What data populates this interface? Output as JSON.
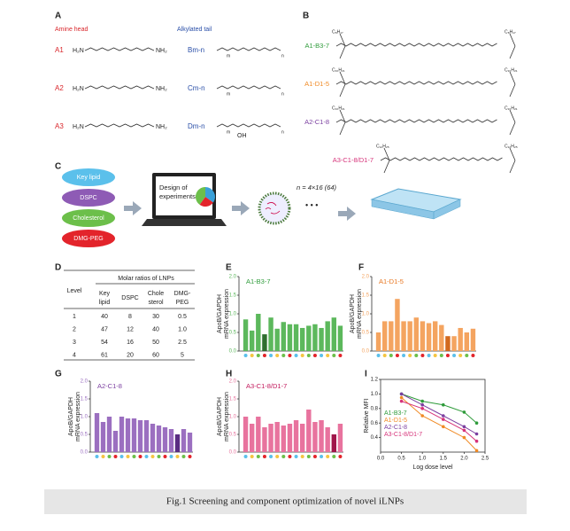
{
  "panels": {
    "A": "A",
    "B": "B",
    "C": "C",
    "D": "D",
    "E": "E",
    "F": "F",
    "G": "G",
    "H": "H",
    "I": "I"
  },
  "panel_a": {
    "head_title": "Amine head",
    "tail_title": "Alkylated tail",
    "heads": [
      {
        "name": "A1",
        "left": "H₂N",
        "right": "NH₂"
      },
      {
        "name": "A2",
        "left": "H₂N",
        "right": "NH₂"
      },
      {
        "name": "A3",
        "left": "H₂N",
        "right": "NH₂"
      }
    ],
    "tails": [
      {
        "name": "Bm-n",
        "m": "m",
        "n": "n"
      },
      {
        "name": "Cm-n",
        "m": "m",
        "n": "n"
      },
      {
        "name": "Dm-n",
        "m": "m",
        "n": "n",
        "oh": "OH"
      }
    ]
  },
  "panel_b": {
    "lipids": [
      {
        "name": "A1-B3-7",
        "group": "C₈H₁₇"
      },
      {
        "name": "A1-D1-5",
        "group": "C₁₀H₂₁"
      },
      {
        "name": "A2-C1-8",
        "group": "C₁₀H₂₁"
      },
      {
        "name": "A3-C1-8/D1-7",
        "group": "C₁₂H₂₅"
      }
    ]
  },
  "panel_c": {
    "lipids": [
      "Key lipid",
      "DSPC",
      "Cholesterol",
      "DMG-PEG"
    ],
    "design": [
      "Design of",
      "experiments"
    ],
    "n_label": "n = 4×16 (64)",
    "dots": "• • •"
  },
  "table": {
    "header": "Molar ratios of LNPs",
    "columns": [
      "Level",
      [
        "Key",
        "lipid"
      ],
      "DSPC",
      [
        "Chole",
        "sterol"
      ],
      [
        "DMG-",
        "PEG"
      ]
    ],
    "rows": [
      [
        1,
        40,
        8,
        30,
        0.5
      ],
      [
        2,
        47,
        12,
        40,
        {
          "value": 1,
          "label": "1.0"
        }
      ],
      [
        3,
        54,
        16,
        50,
        2.5
      ],
      [
        4,
        61,
        20,
        60,
        5
      ]
    ]
  },
  "charts": {
    "E": {
      "type": "bar",
      "title": "A1-B3-7",
      "ylabel": [
        "ApoB/GAPDH",
        "mRNA expression"
      ],
      "ylim": [
        0,
        2
      ],
      "yticks": [
        {
          "value": 0,
          "label": "0.0"
        },
        {
          "value": 0.5,
          "label": "0.5"
        },
        {
          "value": 1,
          "label": "1.0"
        },
        {
          "value": 1.5,
          "label": "1.5"
        },
        {
          "value": 2,
          "label": "2.0"
        }
      ],
      "color": "#5cb85c",
      "title_color": "#2e9b3a",
      "values": [
        0.85,
        0.55,
        1.0,
        0.45,
        0.9,
        0.6,
        0.78,
        0.72,
        0.72,
        0.62,
        0.68,
        0.72,
        0.62,
        0.8,
        0.9,
        0.68
      ],
      "colors": [
        "#5cb85c",
        "#5cb85c",
        "#5cb85c",
        "#2f6e2f",
        "#5cb85c",
        "#5cb85c",
        "#5cb85c",
        "#5cb85c",
        "#5cb85c",
        "#5cb85c",
        "#5cb85c",
        "#5cb85c",
        "#5cb85c",
        "#5cb85c",
        "#5cb85c",
        "#5cb85c"
      ]
    },
    "F": {
      "type": "bar",
      "title": "A1-D1-5",
      "ylabel": [
        "ApoB/GAPDH",
        "mRNA expression"
      ],
      "ylim": [
        0,
        2
      ],
      "yticks": [
        {
          "value": 0,
          "label": "0.0"
        },
        {
          "value": 0.5,
          "label": "0.5"
        },
        {
          "value": 1,
          "label": "1.0"
        },
        {
          "value": 1.5,
          "label": "1.5"
        },
        {
          "value": 2,
          "label": "2.0"
        }
      ],
      "color": "#f4a460",
      "title_color": "#e87722",
      "values": [
        0.5,
        0.8,
        0.8,
        1.4,
        0.8,
        0.8,
        0.9,
        0.8,
        0.75,
        0.8,
        0.7,
        0.4,
        0.4,
        0.62,
        0.5,
        0.6
      ],
      "colors": [
        "#f4a460",
        "#f4a460",
        "#f4a460",
        "#f4a460",
        "#f4a460",
        "#f4a460",
        "#f4a460",
        "#f4a460",
        "#f4a460",
        "#f4a460",
        "#f4a460",
        "#d2691e",
        "#f4a460",
        "#f4a460",
        "#f4a460",
        "#f4a460"
      ]
    },
    "G": {
      "type": "bar",
      "title": "A2-C1-8",
      "ylabel": [
        "ApoB/GAPDH",
        "mRNA expression"
      ],
      "ylim": [
        0,
        2
      ],
      "yticks": [
        {
          "value": 0,
          "label": "0.0"
        },
        {
          "value": 0.5,
          "label": "0.5"
        },
        {
          "value": 1,
          "label": "1.0"
        },
        {
          "value": 1.5,
          "label": "1.5"
        },
        {
          "value": 2,
          "label": "2.0"
        }
      ],
      "color": "#9b6fc0",
      "title_color": "#7b3fa0",
      "values": [
        1.1,
        0.85,
        1.0,
        0.6,
        1.0,
        0.95,
        0.95,
        0.9,
        0.9,
        0.8,
        0.75,
        0.7,
        0.65,
        0.5,
        0.65,
        0.55
      ],
      "colors": [
        "#9b6fc0",
        "#9b6fc0",
        "#9b6fc0",
        "#9b6fc0",
        "#9b6fc0",
        "#9b6fc0",
        "#9b6fc0",
        "#9b6fc0",
        "#9b6fc0",
        "#9b6fc0",
        "#9b6fc0",
        "#9b6fc0",
        "#9b6fc0",
        "#5a2d82",
        "#9b6fc0",
        "#9b6fc0"
      ]
    },
    "H": {
      "type": "bar",
      "title": "A3-C1-8/D1-7",
      "ylabel": [
        "ApoB/GAPDH",
        "mRNA expression"
      ],
      "ylim": [
        0,
        2
      ],
      "yticks": [
        {
          "value": 0,
          "label": "0.0"
        },
        {
          "value": 0.5,
          "label": "0.5"
        },
        {
          "value": 1,
          "label": "1.0"
        },
        {
          "value": 1.5,
          "label": "1.5"
        },
        {
          "value": 2,
          "label": "2.0"
        }
      ],
      "color": "#e8739e",
      "title_color": "#c2185b",
      "values": [
        1.0,
        0.8,
        1.0,
        0.7,
        0.8,
        0.85,
        0.75,
        0.8,
        0.9,
        0.8,
        1.2,
        0.85,
        0.9,
        0.7,
        0.5,
        0.8
      ],
      "colors": [
        "#e8739e",
        "#e8739e",
        "#e8739e",
        "#e8739e",
        "#e8739e",
        "#e8739e",
        "#e8739e",
        "#e8739e",
        "#e8739e",
        "#e8739e",
        "#e8739e",
        "#e8739e",
        "#e8739e",
        "#e8739e",
        "#a0154a",
        "#e8739e"
      ]
    },
    "I": {
      "type": "line",
      "ylabel": "Relative MFI",
      "xlabel": "Log dose level",
      "xlim": [
        0,
        2.5
      ],
      "ylim": [
        0.2,
        1.2
      ],
      "xticks": [
        {
          "value": 0,
          "label": "0.0"
        },
        {
          "value": 0.5,
          "label": "0.5"
        },
        {
          "value": 1,
          "label": "1.0"
        },
        {
          "value": 1.5,
          "label": "1.5"
        },
        {
          "value": 2,
          "label": "2.0"
        },
        {
          "value": 2.5,
          "label": "2.5"
        }
      ],
      "yticks": [
        {
          "value": 0.4,
          "label": "0.4"
        },
        {
          "value": 0.6,
          "label": "0.6"
        },
        {
          "value": 0.8,
          "label": "0.8"
        },
        {
          "value": 1,
          "label": "1.0"
        },
        {
          "value": 1.2,
          "label": "1.2"
        }
      ],
      "x": [
        0.5,
        1.0,
        1.5,
        2.0,
        2.3
      ],
      "series": [
        {
          "name": "A1-B3-7",
          "color": "#2e9b3a",
          "values": [
            1.0,
            0.9,
            0.85,
            0.75,
            0.6
          ]
        },
        {
          "name": "A1-D1-5",
          "color": "#f08a24",
          "values": [
            0.95,
            0.7,
            0.55,
            0.4,
            0.22
          ]
        },
        {
          "name": "A2-C1-8",
          "color": "#7b3fa0",
          "values": [
            1.0,
            0.85,
            0.7,
            0.55,
            0.45
          ]
        },
        {
          "name": "A3-C1-8/D1-7",
          "color": "#d6337a",
          "values": [
            0.9,
            0.8,
            0.65,
            0.5,
            0.35
          ]
        }
      ]
    }
  },
  "caption": "Fig.1 Screening and component optimization of novel iLNPs"
}
